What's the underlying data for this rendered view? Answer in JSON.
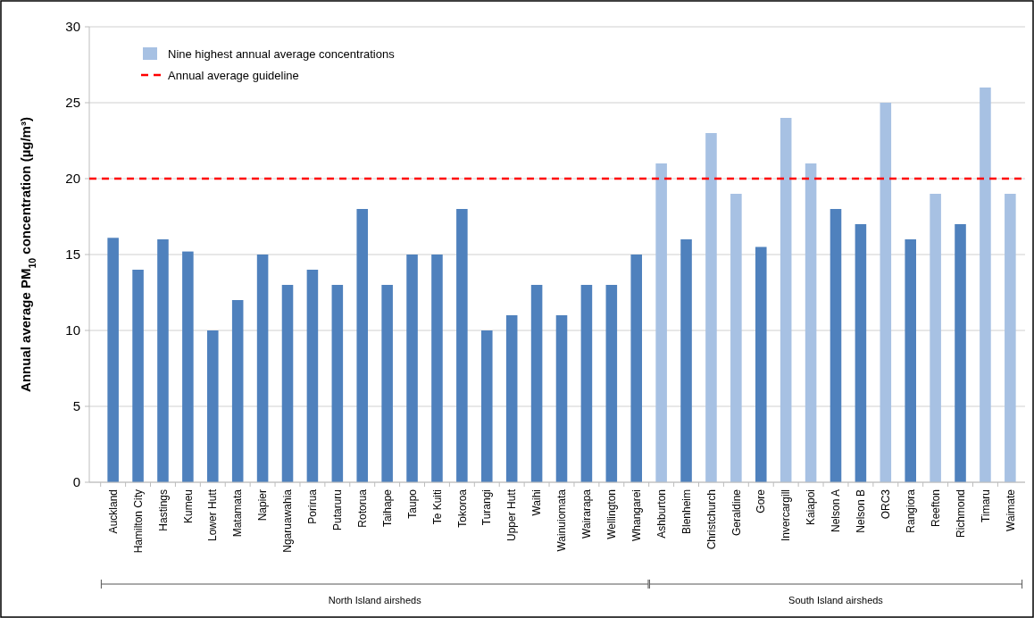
{
  "chart_data": {
    "type": "bar",
    "ylabel": "Annual average PM$_{10}$ concentration (µg/m³)",
    "categories": [
      "Auckland",
      "Hamilton City",
      "Hastings",
      "Kumeu",
      "Lower Hutt",
      "Matamata",
      "Napier",
      "Ngaruawahia",
      "Porirua",
      "Putaruru",
      "Rotorua",
      "Taihape",
      "Taupo",
      "Te Kuiti",
      "Tokoroa",
      "Turangi",
      "Upper Hutt",
      "Waihi",
      "Wainuiomata",
      "Wairarapa",
      "Wellington",
      "Whangarei",
      "Ashburton",
      "Blenheim",
      "Christchurch",
      "Geraldine",
      "Gore",
      "Invercargill",
      "Kaiapoi",
      "Nelson A",
      "Nelson B",
      "ORC3",
      "Rangiora",
      "Reefton",
      "Richmond",
      "Timaru",
      "Waimate"
    ],
    "series": [
      {
        "color": "#4f81bd",
        "values": [
          16.1,
          14,
          16,
          15.2,
          10,
          12,
          15,
          13,
          14,
          13,
          18,
          13,
          15,
          15,
          18,
          10,
          11,
          13,
          11,
          13,
          13,
          15,
          null,
          16,
          null,
          null,
          15.5,
          null,
          null,
          18,
          17,
          null,
          16,
          null,
          17,
          null,
          null
        ]
      },
      {
        "name": "Nine highest annual average concentrations",
        "color": "#a7c1e3",
        "values": [
          null,
          null,
          null,
          null,
          null,
          null,
          null,
          null,
          null,
          null,
          null,
          null,
          null,
          null,
          null,
          null,
          null,
          null,
          null,
          null,
          null,
          null,
          21,
          null,
          23,
          19,
          null,
          24,
          21,
          null,
          null,
          25,
          null,
          19,
          null,
          26,
          19
        ]
      }
    ],
    "ylim": [
      0,
      30
    ],
    "yticks": [
      0,
      5,
      10,
      15,
      20,
      25,
      30
    ],
    "grid": "y",
    "legend": "top left",
    "ref_lines": [
      {
        "axis": "y",
        "value": 20,
        "label": "Annual average guideline",
        "color": "#ff0000",
        "line_style": "dashed"
      }
    ],
    "annotations": [
      "North Island airsheds",
      "South Island airsheds"
    ]
  }
}
